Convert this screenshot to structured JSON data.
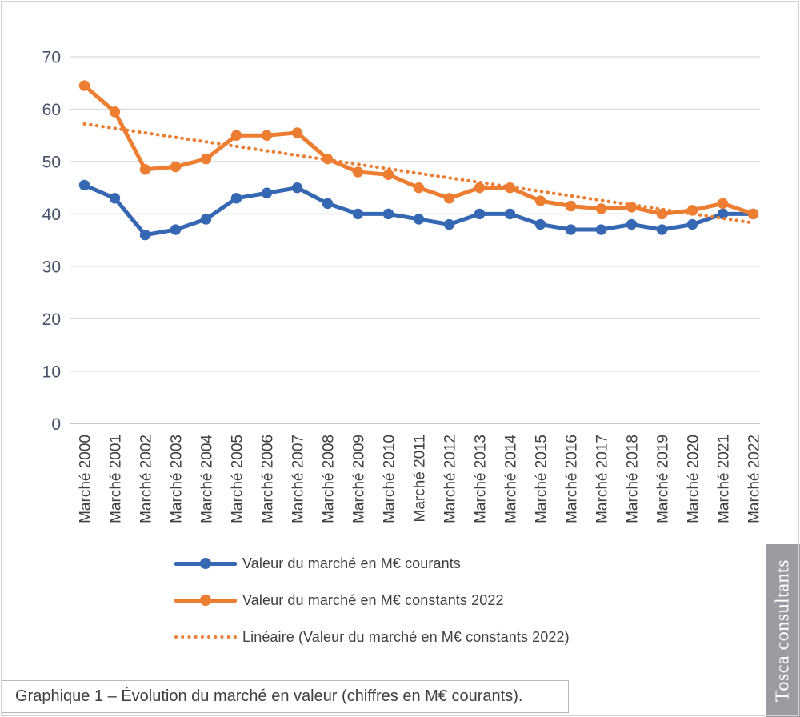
{
  "chart_data": {
    "type": "line",
    "categories": [
      "Marché 2000",
      "Marché 2001",
      "Marché 2002",
      "Marché 2003",
      "Marché 2004",
      "Marché 2005",
      "Marché 2006",
      "Marché 2007",
      "Marché 2008",
      "Marché 2009",
      "Marché 2010",
      "Marché 2011",
      "Marché 2012",
      "Marché 2013",
      "Marché 2014",
      "Marché 2015",
      "Marché 2016",
      "Marché 2017",
      "Marché 2018",
      "Marché 2019",
      "Marché 2020",
      "Marché 2021",
      "Marché 2022"
    ],
    "series": [
      {
        "name": "Valeur du marché en M€ courants",
        "color": "#3567B2",
        "style": "line-markers",
        "values": [
          45.5,
          43,
          36,
          37,
          39,
          43,
          44,
          45,
          42,
          40,
          40,
          39,
          38,
          40,
          40,
          38,
          37,
          37,
          38,
          37,
          38,
          40,
          40
        ]
      },
      {
        "name": "Valeur du marché en M€ constants 2022",
        "color": "#ED7D31",
        "style": "line-markers",
        "values": [
          64.5,
          59.5,
          48.5,
          49,
          50.5,
          55,
          55,
          55.5,
          50.5,
          48,
          47.5,
          45,
          43,
          45,
          45,
          42.5,
          41.5,
          41,
          41.3,
          40,
          40.7,
          42,
          40
        ]
      },
      {
        "name": "Linéaire (Valeur du marché en M€ constants 2022)",
        "color": "#ED7D31",
        "style": "dotted-trendline",
        "trend_start": 57.2,
        "trend_end": 38.3
      }
    ],
    "ylim": [
      0,
      70
    ],
    "yticks": [
      0,
      10,
      20,
      30,
      40,
      50,
      60,
      70
    ],
    "grid": true,
    "gridline_color": "#d9d9d9",
    "axis_label_color": "#44546A",
    "category_label_color": "#404040",
    "legend_position": "bottom"
  },
  "caption": "Graphique 1 – Évolution du marché en valeur (chiffres en M€ courants).",
  "branding": "Tosca consultants"
}
